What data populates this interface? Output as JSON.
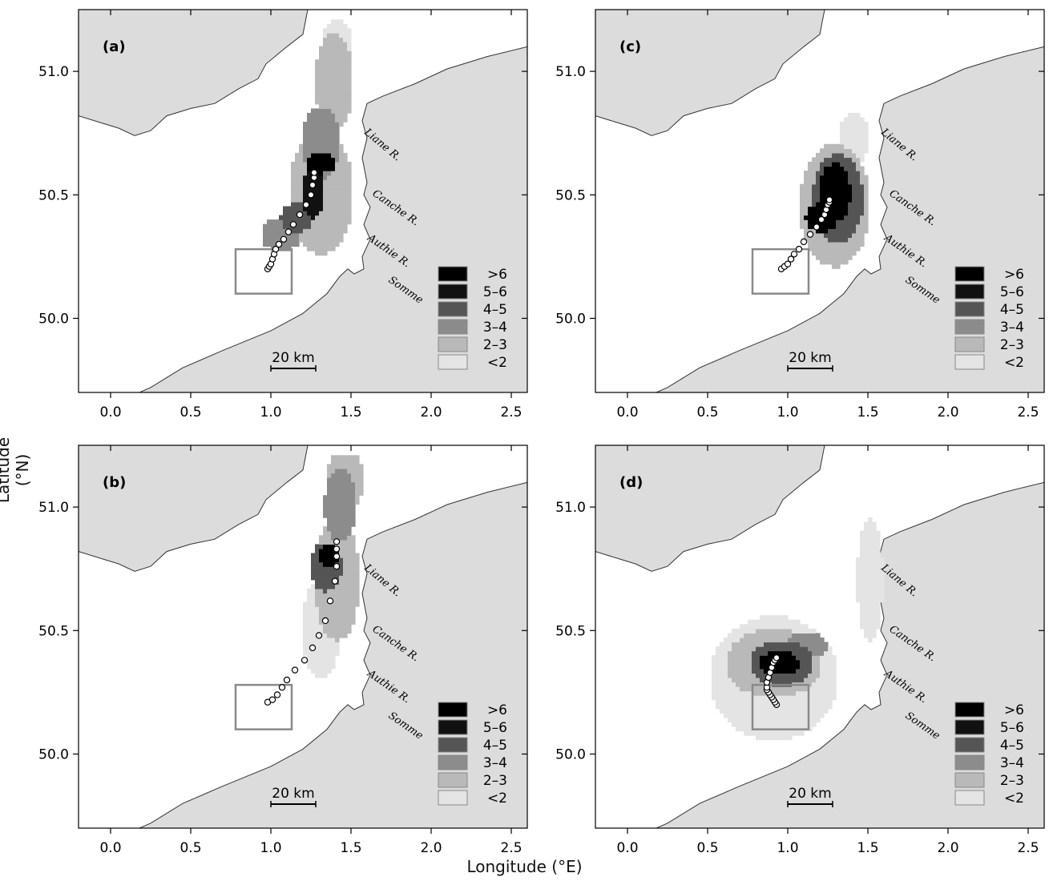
{
  "figure": {
    "xlabel": "Longitude (°E)",
    "ylabel": "Latitude (°N)"
  },
  "axes": {
    "x_ticks": [
      "0.0",
      "0.5",
      "1.0",
      "1.5",
      "2.0",
      "2.5"
    ],
    "y_ticks": [
      "50.0",
      "50.5",
      "51.0"
    ],
    "x_range": [
      -0.2,
      2.6
    ],
    "y_range": [
      49.7,
      51.25
    ]
  },
  "rivers": [
    "Liane R.",
    "Canche R.",
    "Authie R.",
    "Somme"
  ],
  "scale_bar": "20 km",
  "legend": [
    {
      "label": ">6",
      "color": "#000000"
    },
    {
      "label": "5–6",
      "color": "#111111"
    },
    {
      "label": "4–5",
      "color": "#555555"
    },
    {
      "label": "3–4",
      "color": "#8c8c8c"
    },
    {
      "label": "2–3",
      "color": "#b9b9b9"
    },
    {
      "label": "<2",
      "color": "#e4e4e4"
    }
  ],
  "colors": {
    "land": "#dcdcdc",
    "box": "#8a8a8a"
  },
  "release_box": {
    "lon": [
      0.78,
      1.13
    ],
    "lat": [
      50.1,
      50.28
    ]
  },
  "chart_data": [
    {
      "type": "heatmap",
      "panel": "(a)",
      "track": [
        [
          0.98,
          50.2
        ],
        [
          0.99,
          50.21
        ],
        [
          1.0,
          50.22
        ],
        [
          1.01,
          50.24
        ],
        [
          1.02,
          50.26
        ],
        [
          1.03,
          50.28
        ],
        [
          1.05,
          50.3
        ],
        [
          1.08,
          50.32
        ],
        [
          1.11,
          50.35
        ],
        [
          1.14,
          50.38
        ],
        [
          1.18,
          50.42
        ],
        [
          1.22,
          50.46
        ],
        [
          1.25,
          50.5
        ],
        [
          1.26,
          50.54
        ],
        [
          1.27,
          50.57
        ],
        [
          1.27,
          50.59
        ]
      ]
    },
    {
      "type": "heatmap",
      "panel": "(b)",
      "track": [
        [
          0.98,
          50.21
        ],
        [
          1.01,
          50.22
        ],
        [
          1.04,
          50.24
        ],
        [
          1.07,
          50.27
        ],
        [
          1.1,
          50.3
        ],
        [
          1.15,
          50.34
        ],
        [
          1.21,
          50.38
        ],
        [
          1.26,
          50.43
        ],
        [
          1.3,
          50.48
        ],
        [
          1.34,
          50.54
        ],
        [
          1.37,
          50.62
        ],
        [
          1.4,
          50.7
        ],
        [
          1.41,
          50.76
        ],
        [
          1.41,
          50.8
        ],
        [
          1.41,
          50.83
        ],
        [
          1.41,
          50.86
        ]
      ]
    },
    {
      "type": "heatmap",
      "panel": "(c)",
      "track": [
        [
          0.96,
          50.2
        ],
        [
          0.98,
          50.21
        ],
        [
          1.0,
          50.22
        ],
        [
          1.02,
          50.24
        ],
        [
          1.04,
          50.26
        ],
        [
          1.07,
          50.28
        ],
        [
          1.1,
          50.31
        ],
        [
          1.14,
          50.34
        ],
        [
          1.18,
          50.37
        ],
        [
          1.21,
          50.4
        ],
        [
          1.23,
          50.42
        ],
        [
          1.24,
          50.44
        ],
        [
          1.25,
          50.46
        ],
        [
          1.26,
          50.47
        ],
        [
          1.26,
          50.48
        ]
      ]
    },
    {
      "type": "heatmap",
      "panel": "(d)",
      "track": [
        [
          0.93,
          50.2
        ],
        [
          0.92,
          50.21
        ],
        [
          0.91,
          50.22
        ],
        [
          0.9,
          50.23
        ],
        [
          0.89,
          50.24
        ],
        [
          0.88,
          50.25
        ],
        [
          0.87,
          50.26
        ],
        [
          0.87,
          50.27
        ],
        [
          0.87,
          50.29
        ],
        [
          0.88,
          50.31
        ],
        [
          0.89,
          50.33
        ],
        [
          0.9,
          50.35
        ],
        [
          0.91,
          50.37
        ],
        [
          0.92,
          50.38
        ],
        [
          0.93,
          50.39
        ]
      ]
    }
  ]
}
